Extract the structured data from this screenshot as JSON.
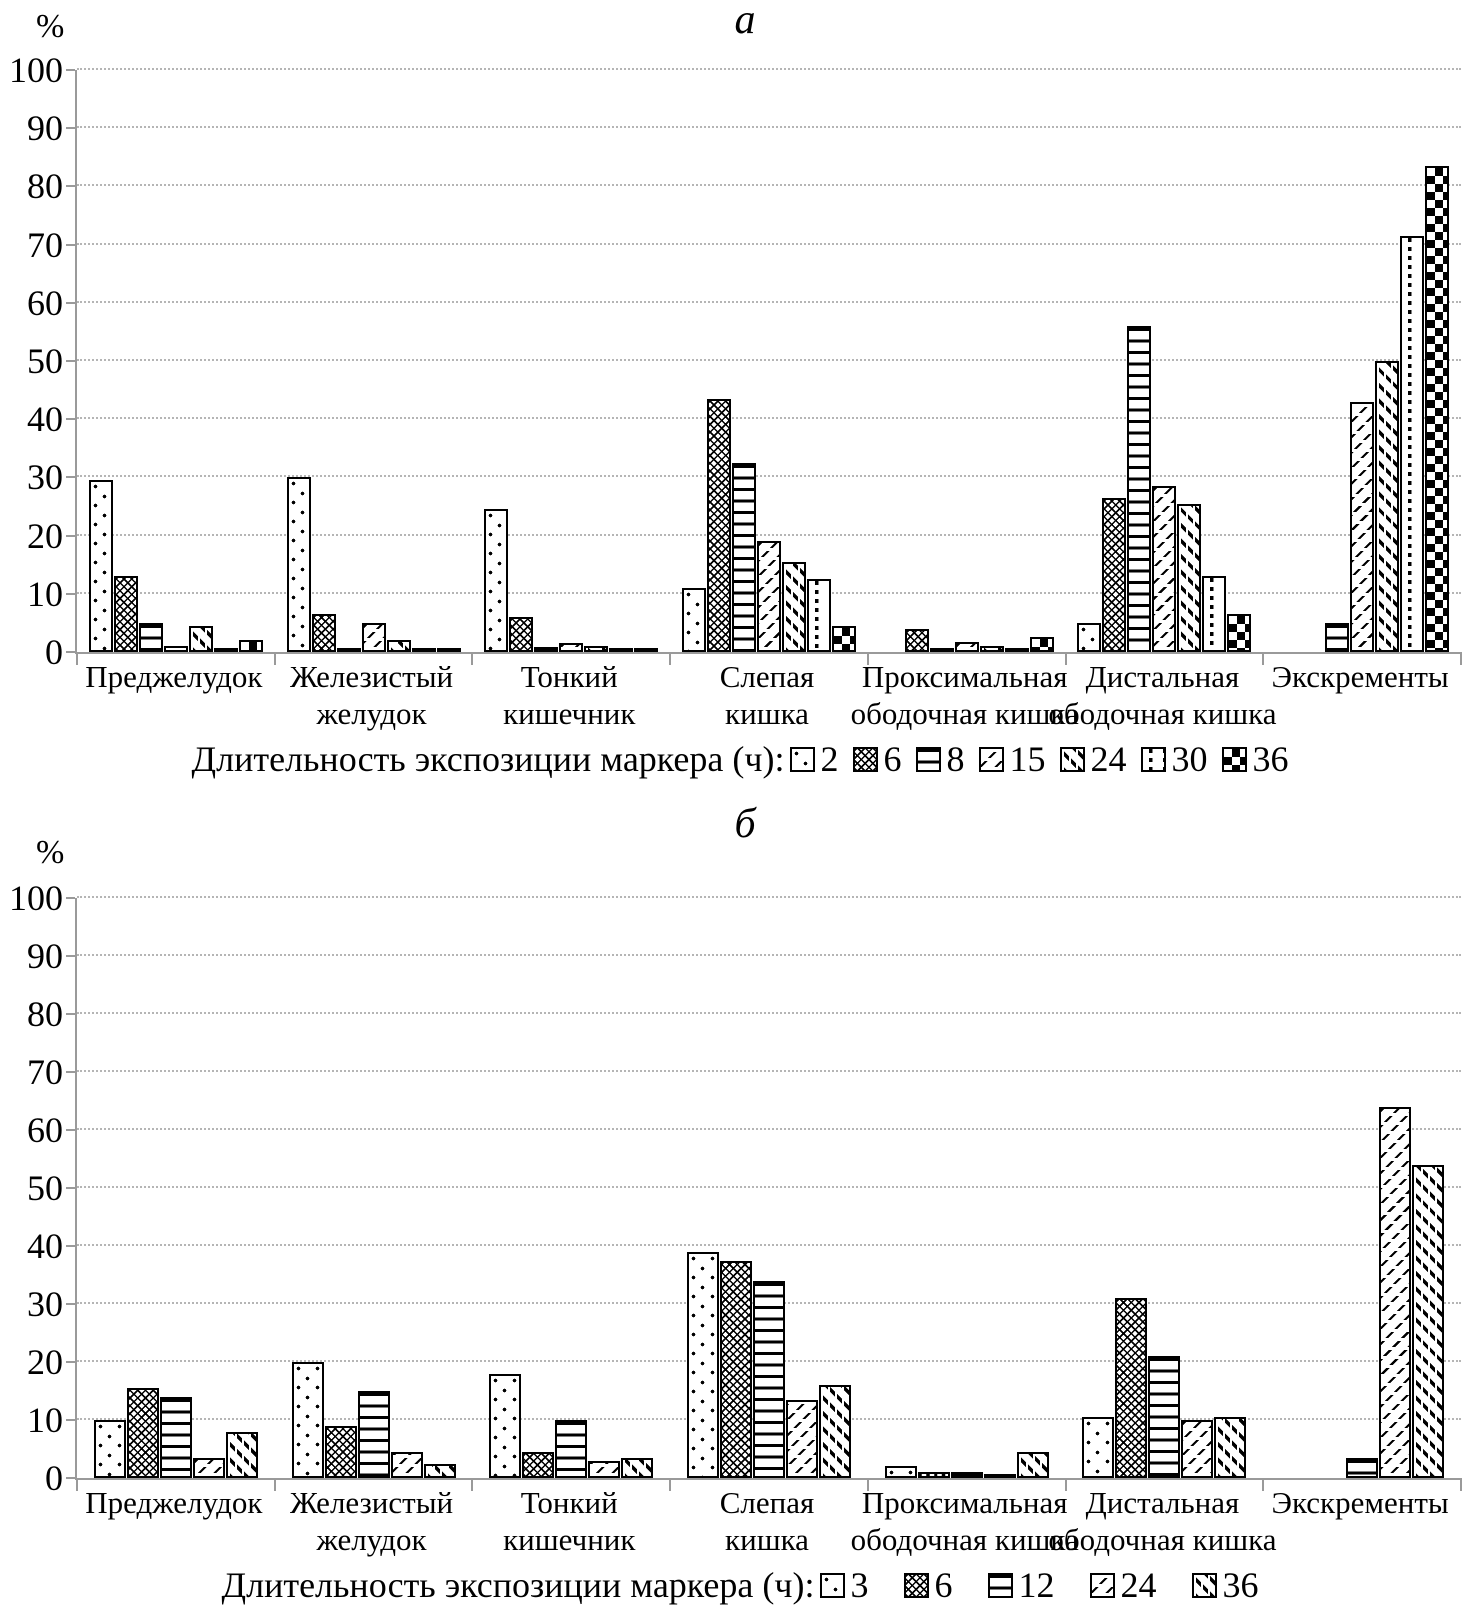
{
  "accent_colors": {
    "ink": "#000000",
    "axis": "#9a9a9a",
    "grid": "#b5b5b5",
    "background": "#ffffff"
  },
  "chart_data": [
    {
      "type": "bar",
      "panel_label": "а",
      "ylabel": "%",
      "ylim": [
        0,
        100
      ],
      "ytick_step": 10,
      "grid": true,
      "legend_position": "bottom",
      "legend_prefix": "Длительность экспозиции маркера (ч):",
      "categories": [
        [
          "Преджелудок"
        ],
        [
          "Железистый",
          "желудок"
        ],
        [
          "Тонкий",
          "кишечник"
        ],
        [
          "Слепая",
          "кишка"
        ],
        [
          "Проксимальная",
          "ободочная кишка"
        ],
        [
          "Дистальная",
          "ободочная кишка"
        ],
        [
          "Экскременты"
        ]
      ],
      "series": [
        {
          "name": "2",
          "pattern": "dotted",
          "values": [
            29.5,
            30,
            24.5,
            11,
            0,
            5,
            0
          ]
        },
        {
          "name": "6",
          "pattern": "crosshatch",
          "values": [
            13,
            6.5,
            6,
            43.5,
            4,
            26.5,
            0
          ]
        },
        {
          "name": "8",
          "pattern": "hlines",
          "values": [
            5,
            0.3,
            0.8,
            32.5,
            0.3,
            56,
            5
          ]
        },
        {
          "name": "15",
          "pattern": "diag-light",
          "values": [
            1,
            5,
            1.5,
            19,
            1.8,
            28.5,
            43
          ]
        },
        {
          "name": "24",
          "pattern": "diag-heavy",
          "values": [
            4.5,
            2,
            1,
            15.5,
            1,
            25.5,
            50
          ]
        },
        {
          "name": "30",
          "pattern": "dash-vert",
          "values": [
            0.5,
            0.5,
            0.5,
            12.5,
            0.5,
            13,
            71.5
          ]
        },
        {
          "name": "36",
          "pattern": "checker",
          "values": [
            2,
            0.2,
            0.3,
            4.5,
            2.5,
            6.5,
            83.5
          ]
        }
      ]
    },
    {
      "type": "bar",
      "panel_label": "б",
      "ylabel": "%",
      "ylim": [
        0,
        100
      ],
      "ytick_step": 10,
      "grid": true,
      "legend_position": "bottom",
      "legend_prefix": "Длительность экспозиции маркера (ч):",
      "categories": [
        [
          "Преджелудок"
        ],
        [
          "Железистый",
          "желудок"
        ],
        [
          "Тонкий",
          "кишечник"
        ],
        [
          "Слепая",
          "кишка"
        ],
        [
          "Проксимальная",
          "ободочная кишка"
        ],
        [
          "Дистальная",
          "ободочная кишка"
        ],
        [
          "Экскременты"
        ]
      ],
      "series": [
        {
          "name": "3",
          "pattern": "dotted",
          "values": [
            10,
            20,
            18,
            39,
            2,
            10.5,
            0
          ]
        },
        {
          "name": "6",
          "pattern": "crosshatch",
          "values": [
            15.5,
            9,
            4.5,
            37.5,
            1,
            31,
            0
          ]
        },
        {
          "name": "12",
          "pattern": "hlines",
          "values": [
            14,
            15,
            10,
            34,
            1,
            21,
            3.5
          ]
        },
        {
          "name": "24",
          "pattern": "diag-light",
          "values": [
            3.5,
            4.5,
            3,
            13.5,
            0.3,
            10,
            64
          ]
        },
        {
          "name": "36",
          "pattern": "diag-heavy",
          "values": [
            8,
            2.5,
            3.5,
            16,
            4.5,
            10.5,
            54
          ]
        }
      ]
    }
  ]
}
